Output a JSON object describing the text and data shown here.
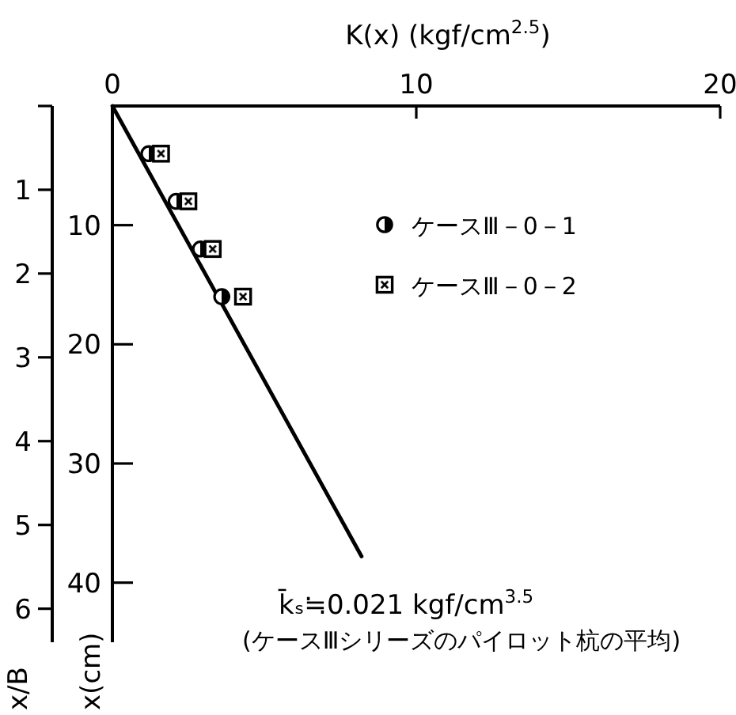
{
  "chart_data": {
    "type": "scatter",
    "xlabel": "K(x) (kgf/cm$^{2.5}$)",
    "ylabel": "x(cm)",
    "y2label": "x/B",
    "xlim": [
      0,
      20
    ],
    "xticks": [
      0,
      10,
      20
    ],
    "ylim": [
      45,
      0
    ],
    "yticks": [
      10,
      20,
      30,
      40
    ],
    "y2lim": [
      6.4,
      0
    ],
    "y2ticks": [
      {
        "value": 0,
        "label": null
      },
      1,
      2,
      3,
      4,
      5,
      6
    ],
    "series": [
      {
        "name": "ケースⅢ－0－1",
        "marker": "circle",
        "color": "#000000",
        "x": [
          1.2,
          2.1,
          2.9,
          3.6
        ],
        "values": [
          4,
          8,
          12,
          16
        ]
      },
      {
        "name": "ケースⅢ－0－2",
        "marker": "square",
        "color": "#000000",
        "x": [
          1.6,
          2.5,
          3.3,
          4.3
        ],
        "values": [
          4,
          8,
          12,
          16
        ]
      },
      {
        "type": "line",
        "color": "#000000",
        "x": [
          0,
          8.2
        ],
        "values": [
          0,
          37.8
        ]
      }
    ],
    "legend": "top right",
    "annotations": [
      "k̄ₛ≒0.021 kgf/cm$^{3.5}$",
      "(ケースⅢシリーズのパイロット杭の平均)"
    ]
  }
}
